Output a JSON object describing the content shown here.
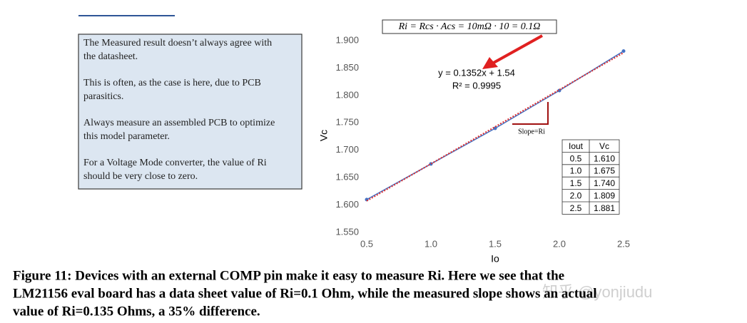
{
  "notes": [
    [
      "The Measured result doesn’t always agree with",
      "the datasheet."
    ],
    [
      "This is often, as the case is here, due to PCB",
      "parasitics."
    ],
    [
      "Always measure an assembled PCB to optimize",
      "this model parameter."
    ],
    [
      "For a Voltage Mode converter, the value of Ri",
      "should be very close to zero."
    ]
  ],
  "chart_data": {
    "type": "scatter",
    "formula": "Ri = Rcs · Acs = 10mΩ · 10 = 0.1Ω",
    "x_label": "Io",
    "y_label": "Vc",
    "x": [
      0.5,
      1.0,
      1.5,
      2.0,
      2.5
    ],
    "series": [
      {
        "color": "#4472c4",
        "values": [
          1.61,
          1.675,
          1.74,
          1.809,
          1.881
        ]
      }
    ],
    "trendline": {
      "slope": 0.1352,
      "intercept": 1.54,
      "label": "y = 0.1352x + 1.54",
      "r2_label": "R² = 0.9995",
      "color": "#e03030"
    },
    "slope_label": "Slope=Ri",
    "xlim": [
      0.5,
      2.5
    ],
    "xticks": [
      0.5,
      {
        "value": 1.0,
        "label": "1.0"
      },
      1.5,
      {
        "value": 2.0,
        "label": "2.0"
      },
      2.5
    ],
    "ylim": [
      1.55,
      1.9
    ],
    "yticks": [
      {
        "value": 1.55,
        "label": "1.550"
      },
      {
        "value": 1.6,
        "label": "1.600"
      },
      {
        "value": 1.65,
        "label": "1.650"
      },
      {
        "value": 1.7,
        "label": "1.700"
      },
      {
        "value": 1.75,
        "label": "1.750"
      },
      {
        "value": 1.8,
        "label": "1.800"
      },
      {
        "value": 1.85,
        "label": "1.850"
      },
      {
        "value": 1.9,
        "label": "1.900"
      }
    ],
    "grid": false,
    "table": {
      "header": [
        "Iout",
        "Vc"
      ],
      "rows": [
        [
          "0.5",
          "1.610"
        ],
        [
          "1.0",
          "1.675"
        ],
        [
          "1.5",
          "1.740"
        ],
        [
          "2.0",
          "1.809"
        ],
        [
          "2.5",
          "1.881"
        ]
      ]
    }
  },
  "caption": [
    "Figure 11:  Devices with an external COMP pin make it easy to measure Ri.  Here we see that the",
    "LM21156 eval board has a data sheet value of Ri=0.1 Ohm, while the measured slope shows an actual",
    "value of Ri=0.135 Ohms, a 35% difference."
  ],
  "watermark": "知乎 @yonjiudu"
}
